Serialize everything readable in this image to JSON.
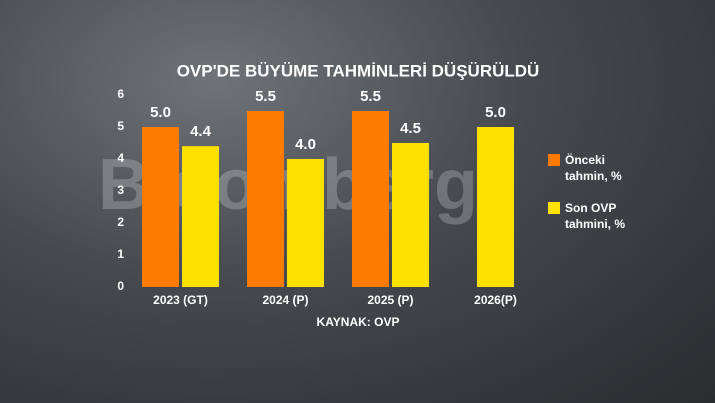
{
  "chart_data": {
    "type": "bar",
    "title": "OVP'DE BÜYÜME TAHMİNLERİ DÜŞÜRÜLDÜ",
    "source": "KAYNAK: OVP",
    "watermark": "Bloomberg",
    "categories": [
      "2023 (GT)",
      "2024 (P)",
      "2025 (P)",
      "2026(P)"
    ],
    "series": [
      {
        "name": "Önceki tahmin, %",
        "color": "#ff7b00",
        "values": [
          5.0,
          5.5,
          5.5,
          null
        ],
        "value_labels": [
          "5.0",
          "5.5",
          "5.5",
          null
        ]
      },
      {
        "name": "Son OVP tahmini, %",
        "color": "#ffe100",
        "values": [
          4.4,
          4.0,
          4.5,
          5.0
        ],
        "value_labels": [
          "4.4",
          "4.0",
          "4.5",
          "5.0"
        ]
      }
    ],
    "ylim": [
      0,
      6
    ],
    "yticks": [
      0,
      1,
      2,
      3,
      4,
      5,
      6
    ],
    "grid": false,
    "legend": "right"
  }
}
